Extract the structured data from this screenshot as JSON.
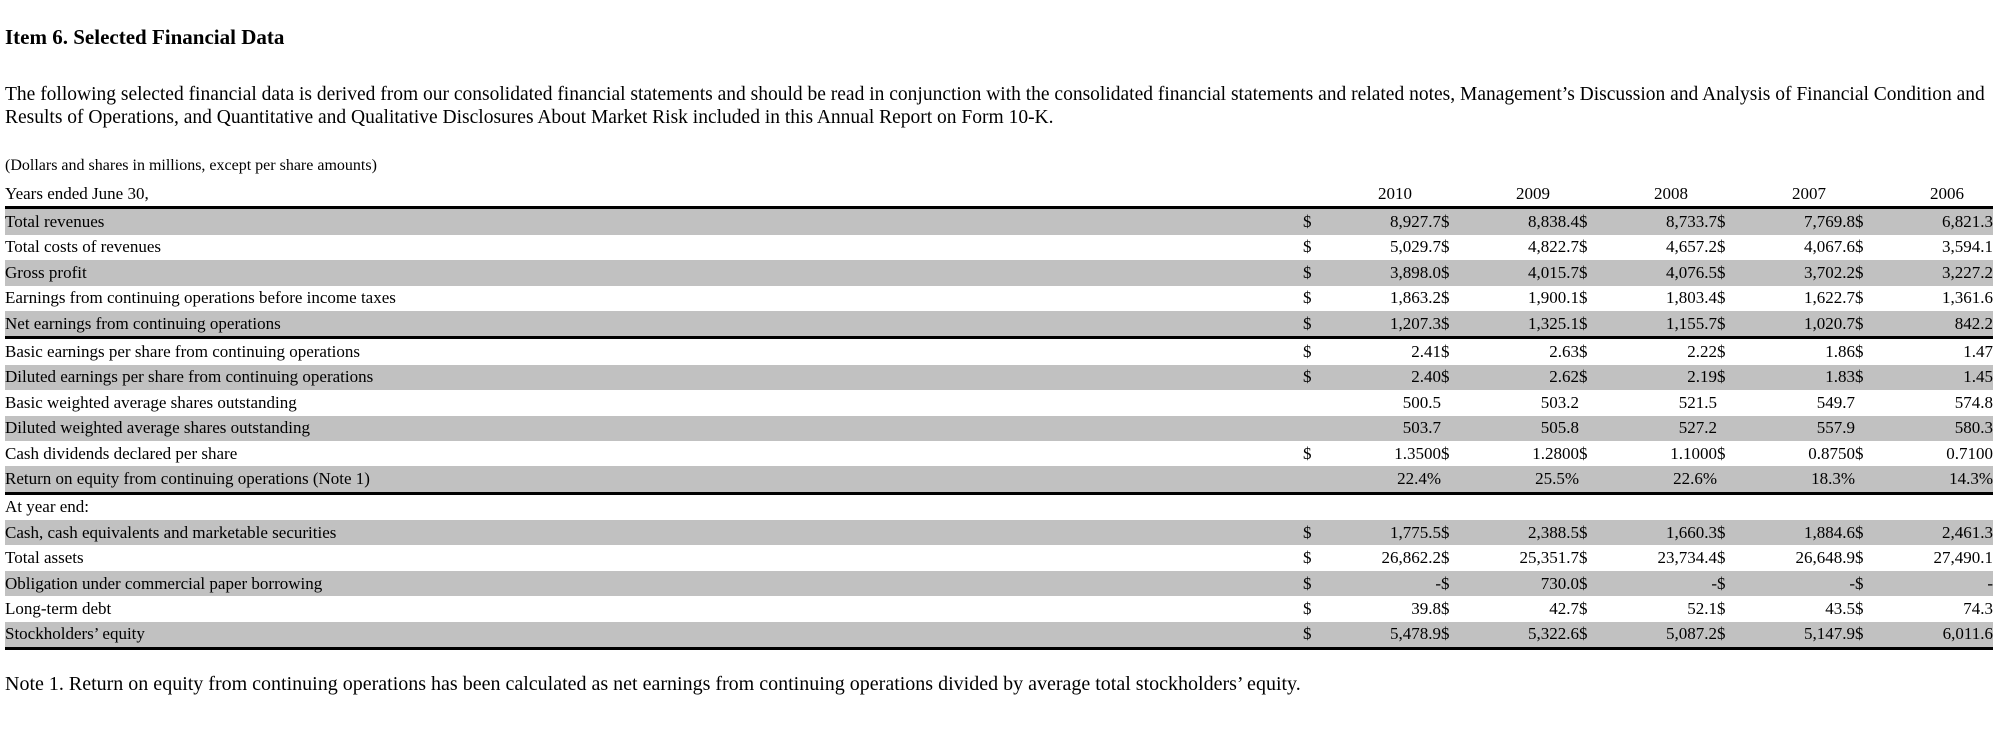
{
  "page": {
    "title": "Item 6. Selected Financial Data",
    "intro": "The following selected financial data is derived from our consolidated financial statements and should be read in conjunction with the consolidated financial statements and related notes, Management’s Discussion and Analysis of Financial Condition and Results of Operations, and Quantitative and Qualitative Disclosures About Market Risk included in this Annual Report on Form 10-K.",
    "units_note": "(Dollars and shares in millions, except per share amounts)",
    "footnote": "Note 1. Return on equity from continuing operations has been calculated as net earnings from continuing operations divided by average total stockholders’ equity."
  },
  "colors": {
    "row_shade": "#c1c1c1",
    "rule": "#000000",
    "text": "#000000"
  },
  "table": {
    "period_label": "Years ended June 30,",
    "dollar_glyph": "$",
    "years": [
      "2010",
      "2009",
      "2008",
      "2007",
      "2006"
    ],
    "rows": [
      {
        "label": "Total revenues",
        "dollar": true,
        "shade": true,
        "rule_below": false,
        "values": [
          "8,927.7",
          "8,838.4",
          "8,733.7",
          "7,769.8",
          "6,821.3"
        ]
      },
      {
        "label": "Total costs of revenues",
        "dollar": true,
        "shade": false,
        "rule_below": false,
        "values": [
          "5,029.7",
          "4,822.7",
          "4,657.2",
          "4,067.6",
          "3,594.1"
        ]
      },
      {
        "label": "Gross profit",
        "dollar": true,
        "shade": true,
        "rule_below": false,
        "values": [
          "3,898.0",
          "4,015.7",
          "4,076.5",
          "3,702.2",
          "3,227.2"
        ]
      },
      {
        "label": "Earnings from continuing operations before income taxes",
        "dollar": true,
        "shade": false,
        "rule_below": false,
        "values": [
          "1,863.2",
          "1,900.1",
          "1,803.4",
          "1,622.7",
          "1,361.6"
        ]
      },
      {
        "label": "Net earnings from continuing operations",
        "dollar": true,
        "shade": true,
        "rule_below": true,
        "values": [
          "1,207.3",
          "1,325.1",
          "1,155.7",
          "1,020.7",
          "842.2"
        ]
      },
      {
        "label": "Basic earnings per share from continuing operations",
        "dollar": true,
        "shade": false,
        "rule_below": false,
        "values": [
          "2.41",
          "2.63",
          "2.22",
          "1.86",
          "1.47"
        ]
      },
      {
        "label": "Diluted earnings per share from continuing operations",
        "dollar": true,
        "shade": true,
        "rule_below": false,
        "values": [
          "2.40",
          "2.62",
          "2.19",
          "1.83",
          "1.45"
        ]
      },
      {
        "label": "Basic weighted average shares outstanding",
        "dollar": false,
        "shade": false,
        "rule_below": false,
        "values": [
          "500.5",
          "503.2",
          "521.5",
          "549.7",
          "574.8"
        ]
      },
      {
        "label": "Diluted weighted average shares outstanding",
        "dollar": false,
        "shade": true,
        "rule_below": false,
        "values": [
          "503.7",
          "505.8",
          "527.2",
          "557.9",
          "580.3"
        ]
      },
      {
        "label": "Cash dividends declared per share",
        "dollar": true,
        "shade": false,
        "rule_below": false,
        "values": [
          "1.3500",
          "1.2800",
          "1.1000",
          "0.8750",
          "0.7100"
        ]
      },
      {
        "label": "Return on equity from continuing operations (Note 1)",
        "dollar": false,
        "shade": true,
        "rule_below": true,
        "values": [
          "22.4%",
          "25.5%",
          "22.6%",
          "18.3%",
          "14.3%"
        ]
      },
      {
        "label": "At year end:",
        "dollar": false,
        "shade": false,
        "rule_below": false,
        "values": [
          "",
          "",
          "",
          "",
          ""
        ]
      },
      {
        "label": "Cash, cash equivalents and marketable securities",
        "dollar": true,
        "shade": true,
        "rule_below": false,
        "values": [
          "1,775.5",
          "2,388.5",
          "1,660.3",
          "1,884.6",
          "2,461.3"
        ]
      },
      {
        "label": "Total assets",
        "dollar": true,
        "shade": false,
        "rule_below": false,
        "values": [
          "26,862.2",
          "25,351.7",
          "23,734.4",
          "26,648.9",
          "27,490.1"
        ]
      },
      {
        "label": "Obligation under commercial paper borrowing",
        "dollar": true,
        "shade": true,
        "rule_below": false,
        "values": [
          "-",
          "730.0",
          "-",
          "-",
          "-"
        ]
      },
      {
        "label": "Long-term debt",
        "dollar": true,
        "shade": false,
        "rule_below": false,
        "values": [
          "39.8",
          "42.7",
          "52.1",
          "43.5",
          "74.3"
        ]
      },
      {
        "label": "Stockholders’ equity",
        "dollar": true,
        "shade": true,
        "rule_below": true,
        "values": [
          "5,478.9",
          "5,322.6",
          "5,087.2",
          "5,147.9",
          "6,011.6"
        ]
      }
    ]
  }
}
